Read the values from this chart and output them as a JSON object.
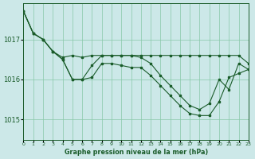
{
  "title": "Graphe pression niveau de la mer (hPa)",
  "bg_color": "#cce8e8",
  "grid_color": "#88c8a8",
  "line_color": "#1a5c2a",
  "xlim": [
    0,
    23
  ],
  "ylim": [
    1014.5,
    1017.9
  ],
  "yticks": [
    1015,
    1016,
    1017
  ],
  "xtick_labels": [
    "0",
    "1",
    "2",
    "3",
    "4",
    "5",
    "6",
    "7",
    "8",
    "9",
    "10",
    "11",
    "12",
    "13",
    "14",
    "15",
    "16",
    "17",
    "18",
    "19",
    "20",
    "21",
    "22",
    "23"
  ],
  "s1_y": [
    1017.7,
    1017.15,
    1017.0,
    1016.7,
    1016.55,
    1016.6,
    1016.55,
    1016.6,
    1016.6,
    1016.6,
    1016.6,
    1016.6,
    1016.6,
    1016.6,
    1016.6,
    1016.6,
    1016.6,
    1016.6,
    1016.6,
    1016.6,
    1016.6,
    1016.6,
    1016.6,
    1016.4
  ],
  "s2_y": [
    1017.7,
    1017.15,
    1017.0,
    1016.7,
    1016.5,
    1016.0,
    1016.0,
    1016.35,
    1016.6,
    1016.6,
    1016.6,
    1016.6,
    1016.55,
    1016.4,
    1016.1,
    1015.85,
    1015.6,
    1015.35,
    1015.25,
    1015.4,
    1016.0,
    1015.75,
    1016.4,
    1016.25
  ],
  "s3_y": [
    1017.7,
    1017.15,
    1017.0,
    1016.7,
    1016.5,
    1016.0,
    1016.0,
    1016.05,
    1016.4,
    1016.4,
    1016.35,
    1016.3,
    1016.3,
    1016.1,
    1015.85,
    1015.6,
    1015.35,
    1015.15,
    1015.1,
    1015.1,
    1015.45,
    1016.05,
    1016.15,
    1016.25
  ]
}
